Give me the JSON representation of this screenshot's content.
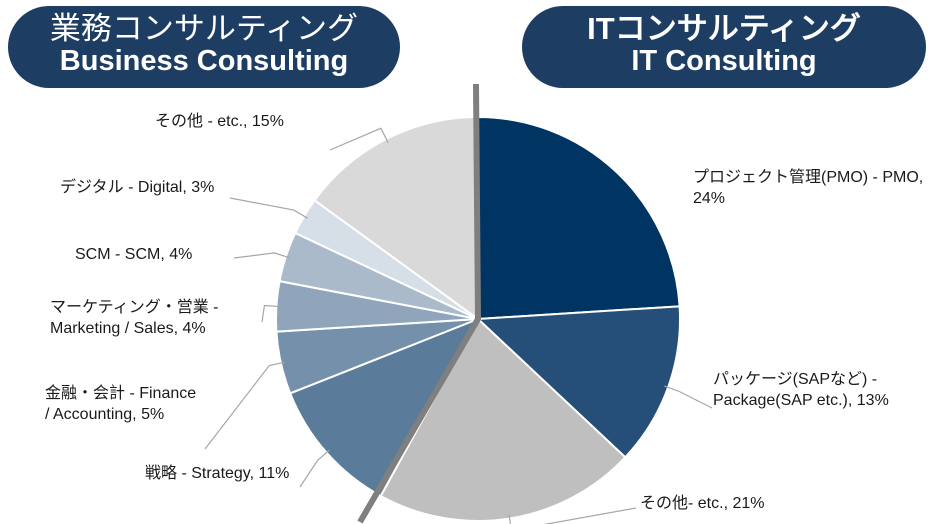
{
  "chart_data": {
    "type": "pie",
    "headers": [
      {
        "title_ja": "業務コンサルティング",
        "title_en": "Business Consulting"
      },
      {
        "title_ja": "ITコンサルティング",
        "title_en": "IT Consulting"
      }
    ],
    "labels": [
      "プロジェクト管理(PMO) - PMO, 24%",
      "パッケージ(SAPなど) - Package(SAP etc.), 13%",
      "その他- etc., 21%",
      "戦略 - Strategy, 11%",
      "金融・会計 - Finance / Accounting, 5%",
      "マーケティング・営業 - Marketing / Sales, 4%",
      "SCM - SCM, 4%",
      "デジタル - Digital, 3%",
      "その他 - etc., 15%"
    ],
    "values": [
      24,
      13,
      21,
      11,
      5,
      4,
      4,
      3,
      15
    ],
    "colors": [
      "#003462",
      "#254f78",
      "#bfbfbf",
      "#5b7b9a",
      "#7590aa",
      "#90a5bb",
      "#aabaca",
      "#d6dee7",
      "#d9d9d9"
    ]
  }
}
